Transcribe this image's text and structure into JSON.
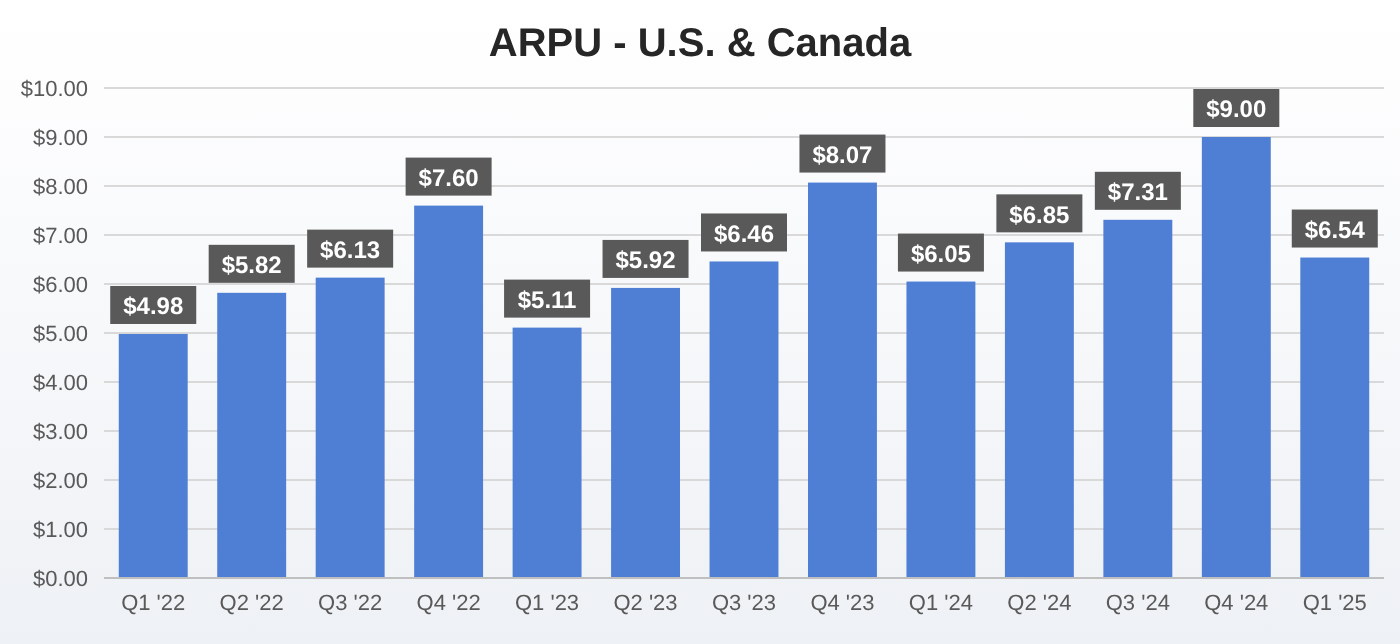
{
  "chart_data": {
    "type": "bar",
    "title": "ARPU - U.S. & Canada",
    "categories": [
      "Q1 '22",
      "Q2 '22",
      "Q3 '22",
      "Q4 '22",
      "Q1 '23",
      "Q2 '23",
      "Q3 '23",
      "Q4 '23",
      "Q1 '24",
      "Q2 '24",
      "Q3 '24",
      "Q4 '24",
      "Q1 '25"
    ],
    "values": [
      4.98,
      5.82,
      6.13,
      7.6,
      5.11,
      5.92,
      6.46,
      8.07,
      6.05,
      6.85,
      7.31,
      9.0,
      6.54
    ],
    "value_labels": [
      "$4.98",
      "$5.82",
      "$6.13",
      "$7.60",
      "$5.11",
      "$5.92",
      "$6.46",
      "$8.07",
      "$6.05",
      "$6.85",
      "$7.31",
      "$9.00",
      "$6.54"
    ],
    "color": "#4f7fd4",
    "ylim": [
      0,
      10
    ],
    "yticks": [
      {
        "value": 0,
        "label": "$0.00"
      },
      {
        "value": 1,
        "label": "$1.00"
      },
      {
        "value": 2,
        "label": "$2.00"
      },
      {
        "value": 3,
        "label": "$3.00"
      },
      {
        "value": 4,
        "label": "$4.00"
      },
      {
        "value": 5,
        "label": "$5.00"
      },
      {
        "value": 6,
        "label": "$6.00"
      },
      {
        "value": 7,
        "label": "$7.00"
      },
      {
        "value": 8,
        "label": "$8.00"
      },
      {
        "value": 9,
        "label": "$9.00"
      },
      {
        "value": 10,
        "label": "$10.00"
      }
    ],
    "grid": true
  }
}
